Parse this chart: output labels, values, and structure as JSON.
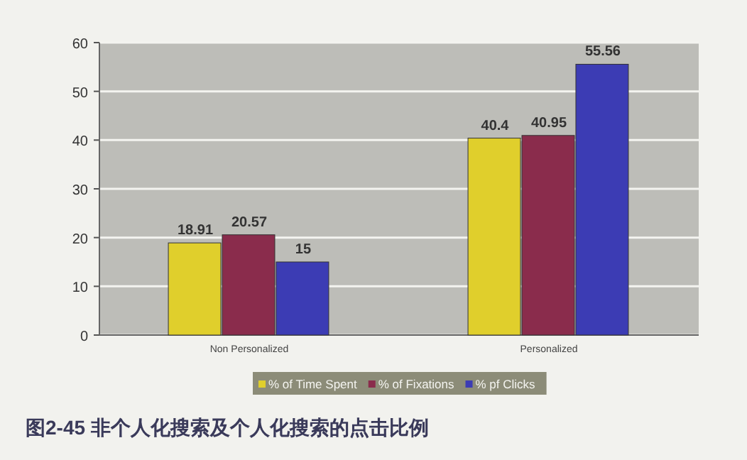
{
  "chart_data": {
    "type": "bar",
    "title": "图2-45 非个人化搜索及个人化搜索的点击比例",
    "categories": [
      "Non Personalized",
      "Personalized"
    ],
    "series": [
      {
        "name": "% of Time Spent",
        "color": "#e0cf2c",
        "values": [
          18.91,
          40.4
        ]
      },
      {
        "name": "% of Fixations",
        "color": "#8a2c4c",
        "values": [
          20.57,
          40.95
        ]
      },
      {
        "name": "% pf Clicks",
        "color": "#3c3cb4",
        "values": [
          15,
          55.56
        ]
      }
    ],
    "ylim": [
      0,
      60
    ],
    "yticks": [
      0,
      10,
      20,
      30,
      40,
      50,
      60
    ],
    "grid": "y",
    "legend": "bottom",
    "data_labels": true
  }
}
